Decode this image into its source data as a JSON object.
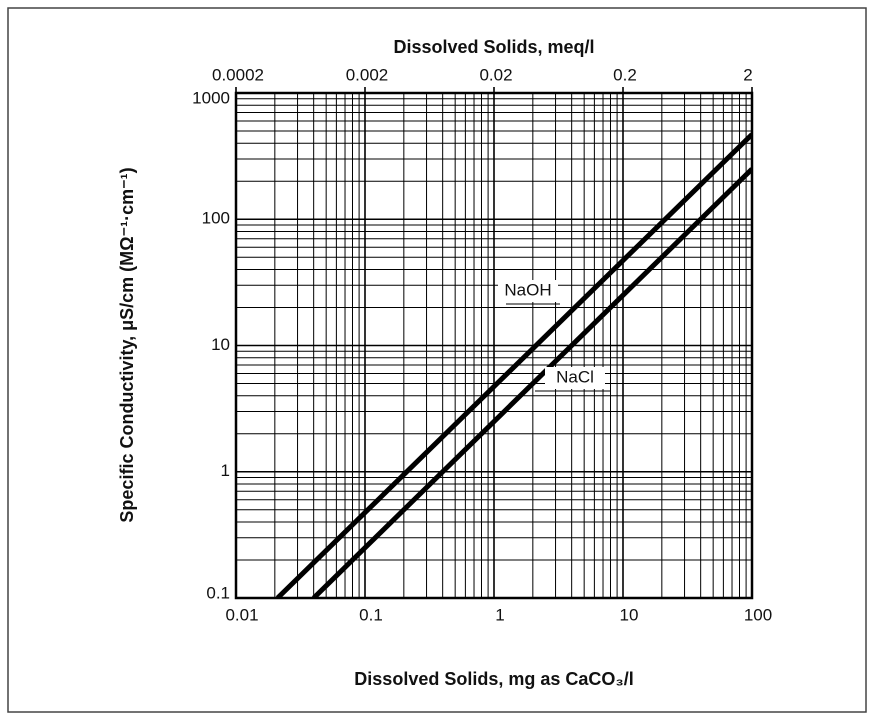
{
  "chart_data": {
    "type": "line",
    "x_label": "Dissolved Solids, mg as CaCO₃/l",
    "x2_label": "Dissolved Solids, meq/l",
    "y_label": "Specific Conductivity, μS/cm (MΩ⁻¹·cm⁻¹)",
    "xlim": [
      0.01,
      100
    ],
    "xticks": [
      0.01,
      0.1,
      1,
      10,
      100
    ],
    "x2lim": [
      0.0002,
      2
    ],
    "x2ticks": [
      0.0002,
      0.002,
      0.02,
      0.2,
      2
    ],
    "ylim": [
      0.1,
      1000
    ],
    "yticks": [
      0.1,
      1,
      10,
      100,
      1000
    ],
    "log_x": true,
    "log_y": true,
    "grid": true,
    "series": [
      {
        "name": "NaOH",
        "color": "#000000",
        "x": [
          0.021,
          100
        ],
        "values": [
          0.1,
          470
        ]
      },
      {
        "name": "NaCl",
        "color": "#000000",
        "x": [
          0.04,
          100
        ],
        "values": [
          0.1,
          250
        ]
      }
    ]
  }
}
